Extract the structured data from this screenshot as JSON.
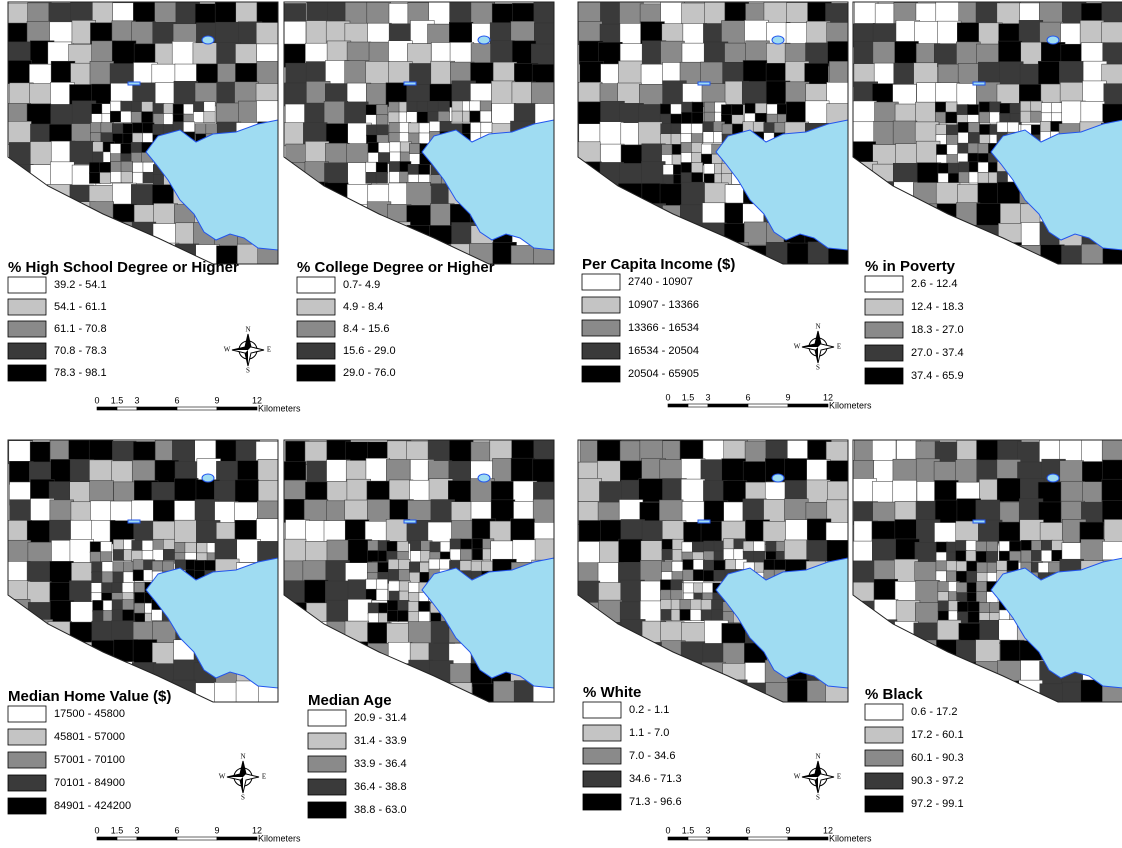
{
  "maps": [
    {
      "title": "% High School Degree or Higher",
      "classes": [
        "39.2 - 54.1",
        "54.1 - 61.1",
        "61.1 - 70.8",
        "70.8 - 78.3",
        "78.3 - 98.1"
      ]
    },
    {
      "title": "% College Degree or Higher",
      "classes": [
        "0.7- 4.9",
        "4.9 - 8.4",
        "8.4 - 15.6",
        "15.6 - 29.0",
        "29.0 - 76.0"
      ]
    },
    {
      "title": "Per Capita Income ($)",
      "classes": [
        "2740 - 10907",
        "10907 - 13366",
        "13366 - 16534",
        "16534 - 20504",
        "20504 - 65905"
      ]
    },
    {
      "title": "% in Poverty",
      "classes": [
        "2.6 - 12.4",
        "12.4 - 18.3",
        "18.3 - 27.0",
        "27.0 - 37.4",
        "37.4 - 65.9"
      ]
    },
    {
      "title": "Median Home Value ($)",
      "classes": [
        "17500 - 45800",
        "45801 - 57000",
        "57001 - 70100",
        "70101 - 84900",
        "84901 - 424200"
      ]
    },
    {
      "title": "Median Age",
      "classes": [
        "20.9 - 31.4",
        "31.4 - 33.9",
        "33.9 - 36.4",
        "36.4 - 38.8",
        "38.8 - 63.0"
      ]
    },
    {
      "title": "% White",
      "classes": [
        "0.2 - 1.1",
        "1.1 - 7.0",
        "7.0 - 34.6",
        "34.6 - 71.3",
        "71.3 - 96.6"
      ]
    },
    {
      "title": "% Black",
      "classes": [
        "0.6 - 17.2",
        "17.2 - 60.1",
        "60.1 - 90.3",
        "90.3 - 97.2",
        "97.2 - 99.1"
      ]
    }
  ],
  "class_colors": [
    "#ffffff",
    "#c4c4c4",
    "#8a8a8a",
    "#3a3a3a",
    "#000000"
  ],
  "water_color": "#9fdcf2",
  "scale_bar": {
    "ticks": [
      "0",
      "1.5",
      "3",
      "6",
      "9",
      "12"
    ],
    "unit": "Kilometers"
  },
  "compass": {
    "n": "N",
    "s": "S",
    "e": "E",
    "w": "W"
  }
}
